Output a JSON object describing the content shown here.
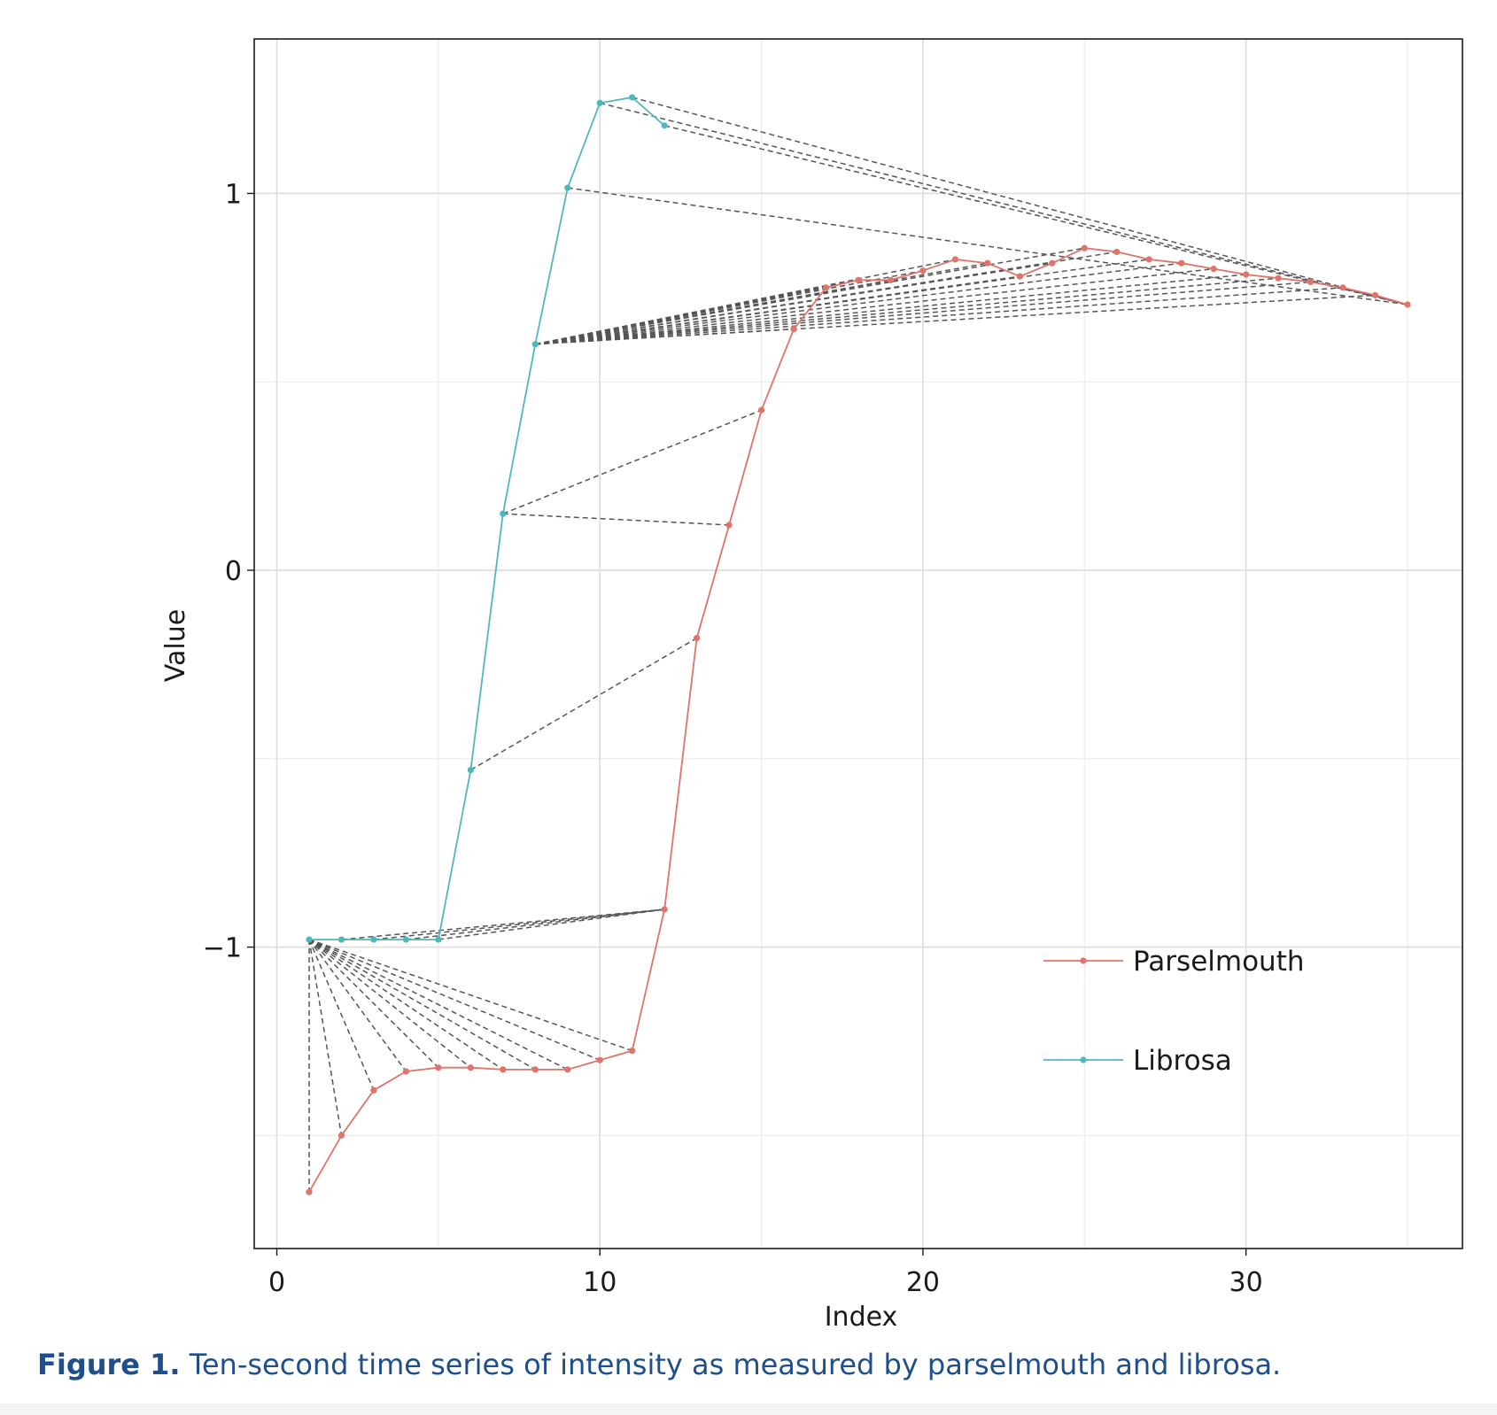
{
  "caption": {
    "label": "Figure 1.",
    "text": "Ten-second time series of intensity as measured by parselmouth and librosa."
  },
  "chart_data": {
    "type": "line",
    "title": "",
    "xlabel": "Index",
    "ylabel": "Value",
    "xlim": [
      -0.7,
      36.7
    ],
    "ylim": [
      -1.8,
      1.41
    ],
    "x_ticks": [
      0,
      10,
      20,
      30
    ],
    "x_tick_labels": [
      "0",
      "10",
      "20",
      "30"
    ],
    "y_ticks": [
      -1,
      0,
      1
    ],
    "y_tick_labels": [
      "−1",
      "0",
      "1"
    ],
    "grid": true,
    "legend_position": "bottom-right",
    "series": [
      {
        "name": "Parselmouth",
        "color": "#e0736a",
        "x": [
          1,
          2,
          3,
          4,
          5,
          6,
          7,
          8,
          9,
          10,
          11,
          12,
          13,
          14,
          15,
          16,
          17,
          18,
          19,
          20,
          21,
          22,
          23,
          24,
          25,
          26,
          27,
          28,
          29,
          30,
          31,
          32,
          33,
          34,
          35
        ],
        "values": [
          -1.65,
          -1.5,
          -1.38,
          -1.33,
          -1.32,
          -1.32,
          -1.325,
          -1.325,
          -1.325,
          -1.3,
          -1.275,
          -0.9,
          -0.18,
          0.12,
          0.425,
          0.64,
          0.75,
          0.77,
          0.77,
          0.795,
          0.825,
          0.815,
          0.78,
          0.815,
          0.855,
          0.845,
          0.825,
          0.815,
          0.8,
          0.785,
          0.775,
          0.765,
          0.75,
          0.73,
          0.705
        ]
      },
      {
        "name": "Librosa",
        "color": "#4fb8bd",
        "x": [
          1,
          2,
          3,
          4,
          5,
          6,
          7,
          8,
          9,
          10,
          11,
          12
        ],
        "values": [
          -0.98,
          -0.98,
          -0.98,
          -0.98,
          -0.98,
          -0.53,
          0.15,
          0.6,
          1.015,
          1.24,
          1.255,
          1.18
        ]
      }
    ],
    "alignment_links": {
      "color": "#555555",
      "style": "dashed",
      "pairs": [
        [
          1,
          1
        ],
        [
          1,
          2
        ],
        [
          1,
          3
        ],
        [
          1,
          4
        ],
        [
          1,
          5
        ],
        [
          1,
          6
        ],
        [
          1,
          7
        ],
        [
          1,
          8
        ],
        [
          1,
          9
        ],
        [
          1,
          10
        ],
        [
          1,
          11
        ],
        [
          2,
          12
        ],
        [
          3,
          12
        ],
        [
          4,
          12
        ],
        [
          5,
          12
        ],
        [
          6,
          13
        ],
        [
          7,
          14
        ],
        [
          7,
          15
        ],
        [
          8,
          16
        ],
        [
          8,
          17
        ],
        [
          8,
          18
        ],
        [
          8,
          19
        ],
        [
          8,
          20
        ],
        [
          8,
          21
        ],
        [
          8,
          22
        ],
        [
          8,
          23
        ],
        [
          8,
          24
        ],
        [
          8,
          25
        ],
        [
          8,
          26
        ],
        [
          8,
          27
        ],
        [
          8,
          28
        ],
        [
          8,
          29
        ],
        [
          8,
          30
        ],
        [
          8,
          31
        ],
        [
          8,
          32
        ],
        [
          8,
          33
        ],
        [
          8,
          34
        ],
        [
          9,
          35
        ],
        [
          10,
          35
        ],
        [
          11,
          35
        ],
        [
          12,
          35
        ]
      ]
    }
  }
}
